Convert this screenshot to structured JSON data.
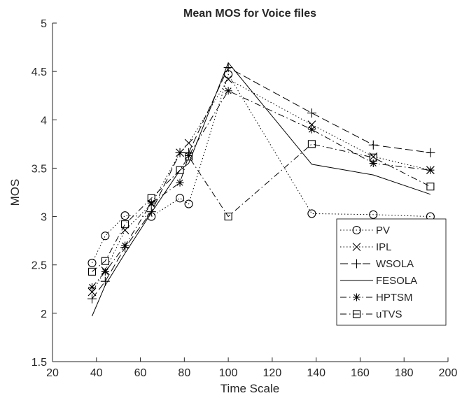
{
  "chart_data": {
    "type": "line",
    "title": "Mean MOS for Voice files",
    "xlabel": "Time Scale",
    "ylabel": "MOS",
    "xlim": [
      20,
      200
    ],
    "ylim": [
      1.5,
      5
    ],
    "xticks": [
      20,
      40,
      60,
      80,
      100,
      120,
      140,
      160,
      180,
      200
    ],
    "yticks": [
      1.5,
      2,
      2.5,
      3,
      3.5,
      4,
      4.5,
      5
    ],
    "xtick_labels": [
      "20",
      "40",
      "60",
      "80",
      "100",
      "120",
      "140",
      "160",
      "180",
      "200"
    ],
    "ytick_labels": [
      "1.5",
      "2",
      "2.5",
      "3",
      "3.5",
      "4",
      "4.5",
      "5"
    ],
    "grid": false,
    "legend_position": "lower-right",
    "series": [
      {
        "name": "PV",
        "line": "dotted",
        "marker": "circle",
        "color": "#000000",
        "x": [
          38,
          44,
          53,
          65,
          78,
          82,
          100,
          138,
          166,
          192
        ],
        "y": [
          2.52,
          2.8,
          3.01,
          3.0,
          3.19,
          3.13,
          4.47,
          3.03,
          3.02,
          3.0
        ]
      },
      {
        "name": "IPL",
        "line": "dotted",
        "marker": "x",
        "color": "#000000",
        "x": [
          38,
          44,
          53,
          65,
          78,
          82,
          100,
          138,
          166,
          192
        ],
        "y": [
          2.22,
          2.44,
          2.86,
          3.13,
          3.66,
          3.76,
          4.42,
          3.95,
          3.62,
          3.48
        ]
      },
      {
        "name": "WSOLA",
        "line": "longdash",
        "marker": "plus",
        "color": "#000000",
        "x": [
          38,
          44,
          53,
          65,
          78,
          82,
          100,
          138,
          166,
          192
        ],
        "y": [
          2.15,
          2.33,
          2.68,
          3.05,
          3.66,
          3.66,
          4.54,
          4.07,
          3.74,
          3.66
        ]
      },
      {
        "name": "FESOLA",
        "line": "solid",
        "marker": "none",
        "color": "#000000",
        "x": [
          38,
          44,
          53,
          65,
          78,
          82,
          100,
          138,
          166,
          192
        ],
        "y": [
          1.97,
          2.29,
          2.62,
          3.04,
          3.48,
          3.55,
          4.59,
          3.54,
          3.43,
          3.23
        ]
      },
      {
        "name": "HPTSM",
        "line": "dashdot",
        "marker": "asterisk",
        "color": "#000000",
        "x": [
          38,
          44,
          53,
          65,
          78,
          82,
          100,
          138,
          166,
          192
        ],
        "y": [
          2.27,
          2.43,
          2.7,
          3.14,
          3.35,
          3.63,
          4.3,
          3.9,
          3.55,
          3.48
        ]
      },
      {
        "name": "uTVS",
        "line": "dashdot",
        "marker": "square",
        "color": "#000000",
        "x": [
          38,
          44,
          53,
          65,
          78,
          82,
          100,
          138,
          166,
          192
        ],
        "y": [
          2.43,
          2.54,
          2.92,
          3.19,
          3.48,
          3.62,
          3.0,
          3.75,
          3.61,
          3.31
        ]
      }
    ]
  }
}
